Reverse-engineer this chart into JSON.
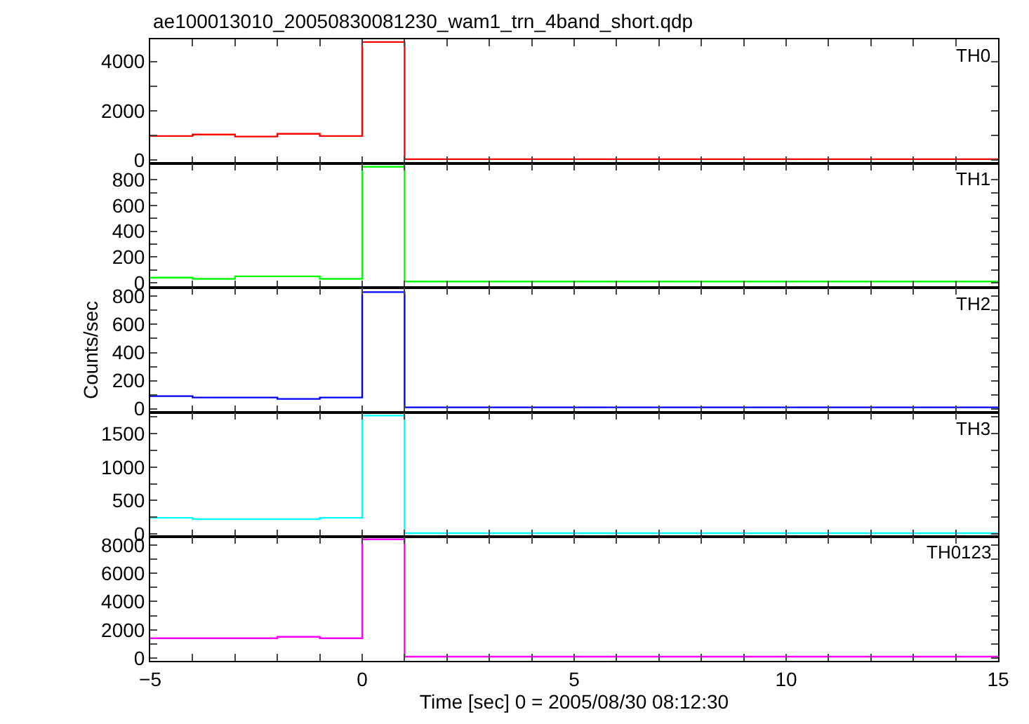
{
  "chart_data": [
    {
      "type": "histogram",
      "title": "ae100013010_20050830081230_wam1_trn_4band_short.qdp",
      "bins": [
        -5,
        -4,
        -3,
        -2,
        -1,
        0,
        1,
        2,
        3,
        4,
        5,
        6,
        7,
        8,
        9,
        10,
        11,
        12,
        13,
        14,
        15
      ],
      "xlim": [
        -5,
        15
      ],
      "xticks": [
        {
          "value": -5,
          "label": null
        },
        {
          "value": -4,
          "label": null
        },
        {
          "value": -3,
          "label": null
        },
        {
          "value": -2,
          "label": null
        },
        {
          "value": -1,
          "label": null
        },
        {
          "value": 0,
          "label": null
        },
        {
          "value": 1,
          "label": null
        },
        {
          "value": 2,
          "label": null
        },
        {
          "value": 3,
          "label": null
        },
        {
          "value": 4,
          "label": null
        },
        {
          "value": 5,
          "label": null
        },
        {
          "value": 6,
          "label": null
        },
        {
          "value": 7,
          "label": null
        },
        {
          "value": 8,
          "label": null
        },
        {
          "value": 9,
          "label": null
        },
        {
          "value": 10,
          "label": null
        },
        {
          "value": 11,
          "label": null
        },
        {
          "value": 12,
          "label": null
        },
        {
          "value": 13,
          "label": null
        },
        {
          "value": 14,
          "label": null
        },
        {
          "value": 15,
          "label": null
        }
      ],
      "ylim": [
        -150,
        4900
      ],
      "yticks": [
        0,
        {
          "value": 1000,
          "label": null
        },
        2000,
        {
          "value": 3000,
          "label": null
        },
        4000
      ],
      "tick_labels": "y",
      "series": [
        {
          "name": "TH0",
          "color": "#ff0000",
          "values": [
            970,
            1030,
            950,
            1060,
            970,
            4790,
            30,
            30,
            30,
            30,
            30,
            30,
            30,
            30,
            30,
            30,
            30,
            30,
            30,
            30
          ]
        }
      ]
    },
    {
      "type": "histogram",
      "bins": [
        -5,
        -4,
        -3,
        -2,
        -1,
        0,
        1,
        2,
        3,
        4,
        5,
        6,
        7,
        8,
        9,
        10,
        11,
        12,
        13,
        14,
        15
      ],
      "xlim": [
        -5,
        15
      ],
      "xticks": [
        {
          "value": -5,
          "label": null
        },
        {
          "value": -4,
          "label": null
        },
        {
          "value": -3,
          "label": null
        },
        {
          "value": -2,
          "label": null
        },
        {
          "value": -1,
          "label": null
        },
        {
          "value": 0,
          "label": null
        },
        {
          "value": 1,
          "label": null
        },
        {
          "value": 2,
          "label": null
        },
        {
          "value": 3,
          "label": null
        },
        {
          "value": 4,
          "label": null
        },
        {
          "value": 5,
          "label": null
        },
        {
          "value": 6,
          "label": null
        },
        {
          "value": 7,
          "label": null
        },
        {
          "value": 8,
          "label": null
        },
        {
          "value": 9,
          "label": null
        },
        {
          "value": 10,
          "label": null
        },
        {
          "value": 11,
          "label": null
        },
        {
          "value": 12,
          "label": null
        },
        {
          "value": 13,
          "label": null
        },
        {
          "value": 14,
          "label": null
        },
        {
          "value": 15,
          "label": null
        }
      ],
      "ylim": [
        -40,
        925
      ],
      "yticks": [
        0,
        {
          "value": 100,
          "label": null
        },
        200,
        {
          "value": 300,
          "label": null
        },
        400,
        {
          "value": 500,
          "label": null
        },
        600,
        {
          "value": 700,
          "label": null
        },
        800
      ],
      "tick_labels": "y",
      "series": [
        {
          "name": "TH1",
          "color": "#00ff00",
          "values": [
            40,
            30,
            50,
            50,
            30,
            900,
            10,
            10,
            10,
            10,
            10,
            10,
            10,
            10,
            10,
            10,
            10,
            10,
            10,
            10
          ]
        }
      ]
    },
    {
      "type": "histogram",
      "ylabel": "Counts/sec",
      "bins": [
        -5,
        -4,
        -3,
        -2,
        -1,
        0,
        1,
        2,
        3,
        4,
        5,
        6,
        7,
        8,
        9,
        10,
        11,
        12,
        13,
        14,
        15
      ],
      "xlim": [
        -5,
        15
      ],
      "xticks": [
        {
          "value": -5,
          "label": null
        },
        {
          "value": -4,
          "label": null
        },
        {
          "value": -3,
          "label": null
        },
        {
          "value": -2,
          "label": null
        },
        {
          "value": -1,
          "label": null
        },
        {
          "value": 0,
          "label": null
        },
        {
          "value": 1,
          "label": null
        },
        {
          "value": 2,
          "label": null
        },
        {
          "value": 3,
          "label": null
        },
        {
          "value": 4,
          "label": null
        },
        {
          "value": 5,
          "label": null
        },
        {
          "value": 6,
          "label": null
        },
        {
          "value": 7,
          "label": null
        },
        {
          "value": 8,
          "label": null
        },
        {
          "value": 9,
          "label": null
        },
        {
          "value": 10,
          "label": null
        },
        {
          "value": 11,
          "label": null
        },
        {
          "value": 12,
          "label": null
        },
        {
          "value": 13,
          "label": null
        },
        {
          "value": 14,
          "label": null
        },
        {
          "value": 15,
          "label": null
        }
      ],
      "ylim": [
        -25,
        860
      ],
      "yticks": [
        0,
        {
          "value": 100,
          "label": null
        },
        200,
        {
          "value": 300,
          "label": null
        },
        400,
        {
          "value": 500,
          "label": null
        },
        600,
        {
          "value": 700,
          "label": null
        },
        800
      ],
      "tick_labels": "y",
      "series": [
        {
          "name": "TH2",
          "color": "#0000ff",
          "values": [
            90,
            80,
            80,
            70,
            80,
            830,
            10,
            10,
            10,
            10,
            10,
            10,
            10,
            10,
            10,
            10,
            10,
            10,
            10,
            10
          ]
        }
      ]
    },
    {
      "type": "histogram",
      "bins": [
        -5,
        -4,
        -3,
        -2,
        -1,
        0,
        1,
        2,
        3,
        4,
        5,
        6,
        7,
        8,
        9,
        10,
        11,
        12,
        13,
        14,
        15
      ],
      "xlim": [
        -5,
        15
      ],
      "xticks": [
        {
          "value": -5,
          "label": null
        },
        {
          "value": -4,
          "label": null
        },
        {
          "value": -3,
          "label": null
        },
        {
          "value": -2,
          "label": null
        },
        {
          "value": -1,
          "label": null
        },
        {
          "value": 0,
          "label": null
        },
        {
          "value": 1,
          "label": null
        },
        {
          "value": 2,
          "label": null
        },
        {
          "value": 3,
          "label": null
        },
        {
          "value": 4,
          "label": null
        },
        {
          "value": 5,
          "label": null
        },
        {
          "value": 6,
          "label": null
        },
        {
          "value": 7,
          "label": null
        },
        {
          "value": 8,
          "label": null
        },
        {
          "value": 9,
          "label": null
        },
        {
          "value": 10,
          "label": null
        },
        {
          "value": 11,
          "label": null
        },
        {
          "value": 12,
          "label": null
        },
        {
          "value": 13,
          "label": null
        },
        {
          "value": 14,
          "label": null
        },
        {
          "value": 15,
          "label": null
        }
      ],
      "ylim": [
        -40,
        1820
      ],
      "yticks": [
        0,
        {
          "value": 250,
          "label": null
        },
        500,
        {
          "value": 750,
          "label": null
        },
        1000,
        {
          "value": 1250,
          "label": null
        },
        1500,
        {
          "value": 1750,
          "label": null
        }
      ],
      "tick_labels": "y",
      "series": [
        {
          "name": "TH3",
          "color": "#00ffff",
          "values": [
            240,
            220,
            220,
            220,
            240,
            1770,
            10,
            10,
            10,
            10,
            10,
            10,
            10,
            10,
            10,
            10,
            10,
            10,
            10,
            10
          ]
        }
      ]
    },
    {
      "type": "histogram",
      "xlabel": "Time [sec] 0 = 2005/08/30 08:12:30",
      "bins": [
        -5,
        -4,
        -3,
        -2,
        -1,
        0,
        1,
        2,
        3,
        4,
        5,
        6,
        7,
        8,
        9,
        10,
        11,
        12,
        13,
        14,
        15
      ],
      "xlim": [
        -5,
        15
      ],
      "xticks": [
        {
          "value": -5,
          "label": "−5"
        },
        {
          "value": -4,
          "label": null
        },
        {
          "value": -3,
          "label": null
        },
        {
          "value": -2,
          "label": null
        },
        {
          "value": -1,
          "label": null
        },
        0,
        {
          "value": 1,
          "label": null
        },
        {
          "value": 2,
          "label": null
        },
        {
          "value": 3,
          "label": null
        },
        {
          "value": 4,
          "label": null
        },
        5,
        {
          "value": 6,
          "label": null
        },
        {
          "value": 7,
          "label": null
        },
        {
          "value": 8,
          "label": null
        },
        {
          "value": 9,
          "label": null
        },
        10,
        {
          "value": 11,
          "label": null
        },
        {
          "value": 12,
          "label": null
        },
        {
          "value": 13,
          "label": null
        },
        {
          "value": 14,
          "label": null
        },
        15
      ],
      "ylim": [
        -200,
        8600
      ],
      "yticks": [
        0,
        {
          "value": 1000,
          "label": null
        },
        2000,
        {
          "value": 3000,
          "label": null
        },
        4000,
        {
          "value": 5000,
          "label": null
        },
        6000,
        {
          "value": 7000,
          "label": null
        },
        8000
      ],
      "series": [
        {
          "name": "TH0123",
          "color": "#ff00ff",
          "values": [
            1400,
            1400,
            1400,
            1500,
            1400,
            8400,
            100,
            100,
            100,
            100,
            100,
            100,
            100,
            100,
            100,
            100,
            100,
            100,
            100,
            100
          ]
        }
      ]
    }
  ]
}
